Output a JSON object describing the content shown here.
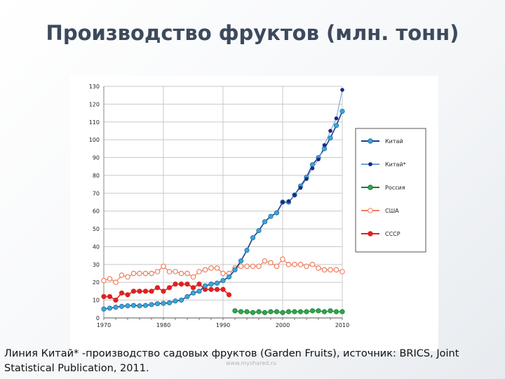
{
  "title": "Производство фруктов (млн. тонн)",
  "caption": "Линия Китай* -производство садовых фруктов (Garden Fruits), источник: BRICS, Joint Statistical Publication, 2011.",
  "watermark": "www.myshared.ru",
  "colors": {
    "china": "#3aa6d8",
    "china_line": "#1f3a8f",
    "china_star": "#1a2a80",
    "russia": "#2ea84a",
    "usa": "#f07f5f",
    "ussr": "#e02020",
    "grid": "#c8c8c8"
  },
  "chart_data": {
    "type": "line",
    "xlim": [
      1970,
      2010
    ],
    "ylim": [
      0,
      130
    ],
    "x_ticks": [
      "1970",
      "1980",
      "1990",
      "2000",
      "2010"
    ],
    "y_ticks": [
      "0",
      "10",
      "20",
      "30",
      "40",
      "50",
      "60",
      "70",
      "80",
      "90",
      "100",
      "110",
      "120",
      "130"
    ],
    "grid": true,
    "legend_position": "right",
    "series": [
      {
        "name": "Китай",
        "x": [
          1970,
          1971,
          1972,
          1973,
          1974,
          1975,
          1976,
          1977,
          1978,
          1979,
          1980,
          1981,
          1982,
          1983,
          1984,
          1985,
          1986,
          1987,
          1988,
          1989,
          1990,
          1991,
          1992,
          1993,
          1994,
          1995,
          1996,
          1997,
          1998,
          1999,
          2000,
          2001,
          2002,
          2003,
          2004,
          2005,
          2006,
          2007,
          2008,
          2009,
          2010
        ],
        "y": [
          5,
          5.5,
          6,
          6.5,
          6.8,
          7,
          6.8,
          7,
          7.5,
          8,
          8.2,
          8.5,
          9.5,
          10,
          12,
          14,
          15,
          18,
          19,
          19.5,
          21,
          23,
          27,
          32,
          38,
          45,
          49,
          54,
          57,
          59,
          65,
          65,
          69,
          74,
          79,
          86,
          90,
          95,
          101,
          108,
          116
        ]
      },
      {
        "name": "Китай*",
        "x": [
          2000,
          2001,
          2002,
          2003,
          2004,
          2005,
          2006,
          2007,
          2008,
          2009,
          2010
        ],
        "y": [
          65,
          65.5,
          69,
          73,
          78,
          84,
          89,
          97,
          105,
          112,
          128
        ]
      },
      {
        "name": "Россия",
        "x": [
          1992,
          1993,
          1994,
          1995,
          1996,
          1997,
          1998,
          1999,
          2000,
          2001,
          2002,
          2003,
          2004,
          2005,
          2006,
          2007,
          2008,
          2009,
          2010
        ],
        "y": [
          4,
          3.5,
          3.5,
          3,
          3.5,
          3,
          3.5,
          3.5,
          3,
          3.5,
          3.5,
          3.5,
          3.5,
          4,
          4,
          3.5,
          4,
          3.5,
          3.5
        ]
      },
      {
        "name": "США",
        "x": [
          1970,
          1971,
          1972,
          1973,
          1974,
          1975,
          1976,
          1977,
          1978,
          1979,
          1980,
          1981,
          1982,
          1983,
          1984,
          1985,
          1986,
          1987,
          1988,
          1989,
          1990,
          1991,
          1992,
          1993,
          1994,
          1995,
          1996,
          1997,
          1998,
          1999,
          2000,
          2001,
          2002,
          2003,
          2004,
          2005,
          2006,
          2007,
          2008,
          2009,
          2010
        ],
        "y": [
          21,
          22,
          20,
          24,
          23,
          25,
          25,
          25,
          25,
          26,
          29,
          26,
          26,
          25,
          25,
          23,
          26,
          27,
          28,
          28,
          25,
          25,
          28,
          29,
          29,
          29,
          29,
          32,
          31,
          29,
          33,
          30,
          30,
          30,
          29,
          30,
          28,
          27,
          27,
          27,
          26
        ]
      },
      {
        "name": "СССР",
        "x": [
          1970,
          1971,
          1972,
          1973,
          1974,
          1975,
          1976,
          1977,
          1978,
          1979,
          1980,
          1981,
          1982,
          1983,
          1984,
          1985,
          1986,
          1987,
          1988,
          1989,
          1990,
          1991
        ],
        "y": [
          12,
          12,
          10,
          14,
          13,
          15,
          15,
          15,
          15,
          17,
          15,
          17,
          19,
          19,
          19,
          17,
          19,
          16,
          16,
          16,
          16,
          13
        ]
      }
    ]
  }
}
